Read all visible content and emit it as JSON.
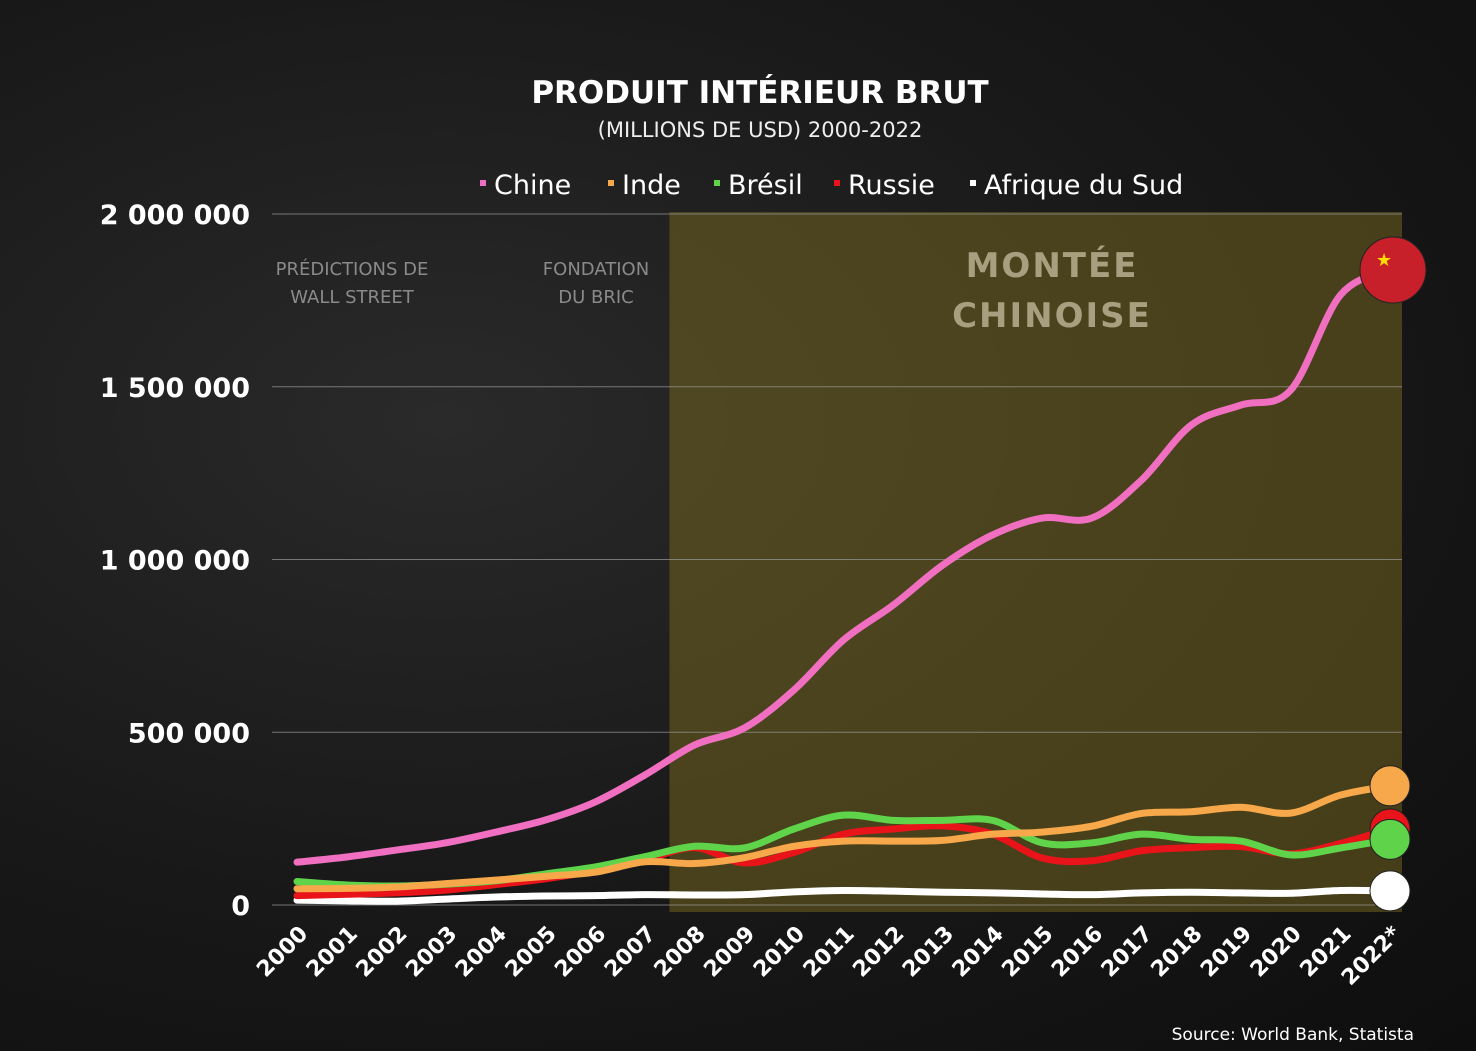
{
  "chart_data": {
    "type": "line",
    "title": "PRODUIT INTÉRIEUR BRUT",
    "subtitle": "(MILLIONS DE USD) 2000-2022",
    "x": [
      "2000",
      "2001",
      "2002",
      "2003",
      "2004",
      "2005",
      "2006",
      "2007",
      "2008",
      "2009",
      "2010",
      "2011",
      "2012",
      "2013",
      "2014",
      "2015",
      "2016",
      "2017",
      "2018",
      "2019",
      "2020",
      "2021",
      "2022*"
    ],
    "ylim": [
      0,
      2000000
    ],
    "yticks": [
      0,
      500000,
      1000000,
      1500000,
      2000000
    ],
    "ytick_labels": [
      "0",
      "500 000",
      "1 000 000",
      "1 500 000",
      "2 000 000"
    ],
    "grid": true,
    "legend_position": "top",
    "series": [
      {
        "name": "Chine",
        "color": "#f06fc0",
        "values": [
          124000,
          139000,
          159000,
          180000,
          211000,
          246000,
          298000,
          376000,
          463000,
          512000,
          622000,
          767000,
          868000,
          984000,
          1071000,
          1120000,
          1120000,
          1230000,
          1389000,
          1447000,
          1490000,
          1765000,
          1838000
        ]
      },
      {
        "name": "Inde",
        "color": "#f7a84a",
        "values": [
          47000,
          48000,
          52000,
          62000,
          72000,
          83000,
          95000,
          125000,
          120000,
          137000,
          170000,
          185000,
          185000,
          187000,
          205000,
          211000,
          228000,
          265000,
          270000,
          283000,
          266000,
          318000,
          345000
        ]
      },
      {
        "name": "Brésil",
        "color": "#5fd34a",
        "values": [
          68000,
          58000,
          55000,
          60000,
          70000,
          90000,
          110000,
          140000,
          170000,
          165000,
          220000,
          260000,
          245000,
          245000,
          245000,
          180000,
          180000,
          205000,
          190000,
          185000,
          145000,
          165000,
          190000
        ]
      },
      {
        "name": "Russie",
        "color": "#e8141a",
        "values": [
          27000,
          31000,
          35000,
          43000,
          59000,
          76000,
          99000,
          130000,
          166000,
          122000,
          152000,
          205000,
          220000,
          229000,
          205000,
          136000,
          128000,
          157000,
          166000,
          169000,
          148000,
          178000,
          220000
        ]
      },
      {
        "name": "Afrique du Sud",
        "color": "#ffffff",
        "values": [
          14000,
          12000,
          11000,
          17000,
          23000,
          26000,
          27000,
          30000,
          29000,
          30000,
          38000,
          42000,
          40000,
          37000,
          35000,
          32000,
          30000,
          35000,
          37000,
          35000,
          34000,
          42000,
          41000
        ]
      }
    ],
    "annotations": [
      {
        "lines": [
          "PRÉDICTIONS DE",
          "WALL STREET"
        ],
        "at_x": "2001"
      },
      {
        "lines": [
          "FONDATION",
          "DU BRIC"
        ],
        "at_x": "2006"
      },
      {
        "lines": [
          "MONTÉE",
          "CHINOISE"
        ],
        "highlight_from": "2008",
        "highlight_to": "2022*"
      }
    ],
    "source": "Source: World Bank, Statista",
    "highlight_color": "#7a6a1e"
  }
}
